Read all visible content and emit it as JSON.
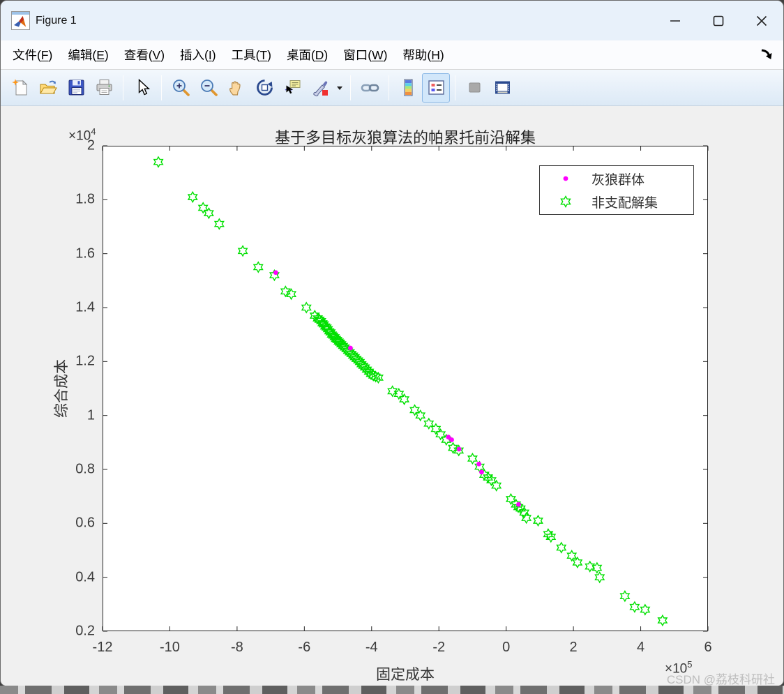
{
  "window": {
    "title": "Figure 1",
    "controls": [
      {
        "name": "minimize-button"
      },
      {
        "name": "maximize-button"
      },
      {
        "name": "close-button"
      }
    ]
  },
  "menu": {
    "items": [
      {
        "id": "file",
        "text": "文件",
        "key": "F"
      },
      {
        "id": "edit",
        "text": "编辑",
        "key": "E"
      },
      {
        "id": "view",
        "text": "查看",
        "key": "V"
      },
      {
        "id": "insert",
        "text": "插入",
        "key": "I"
      },
      {
        "id": "tools",
        "text": "工具",
        "key": "T"
      },
      {
        "id": "desktop",
        "text": "桌面",
        "key": "D"
      },
      {
        "id": "window",
        "text": "窗口",
        "key": "W"
      },
      {
        "id": "help",
        "text": "帮助",
        "key": "H"
      }
    ],
    "dock_icon": "dock-arrow-icon"
  },
  "toolbar": {
    "groups": [
      [
        "new-figure",
        "open-file",
        "save-figure",
        "print-figure"
      ],
      [
        "edit-plot"
      ],
      [
        "zoom-in",
        "zoom-out",
        "pan",
        "rotate-3d",
        "data-cursor",
        "brush",
        "brush-menu-caret"
      ],
      [
        "link-plot"
      ],
      [
        "insert-colorbar",
        "insert-legend"
      ],
      [
        "hide-plot-tools",
        "dock-figure"
      ]
    ],
    "active": "insert-legend",
    "disabled": [
      "hide-plot-tools"
    ]
  },
  "chart_data": {
    "type": "scatter",
    "title": "基于多目标灰狼算法的帕累托前沿解集",
    "xlabel": "固定成本",
    "ylabel": "综合成本",
    "xlim": [
      -12,
      6
    ],
    "ylim": [
      0.2,
      2
    ],
    "x_exponent": {
      "base": "×10",
      "exp": "5"
    },
    "y_exponent": {
      "base": "×10",
      "exp": "4"
    },
    "xticks": [
      "-12",
      "-10",
      "-8",
      "-6",
      "-4",
      "-2",
      "0",
      "2",
      "4",
      "6"
    ],
    "yticks": [
      "0.2",
      "0.4",
      "0.6",
      "0.8",
      "1",
      "1.2",
      "1.4",
      "1.6",
      "1.8",
      "2"
    ],
    "grid": false,
    "legend_position": "top-right",
    "series": [
      {
        "name": "灰狼群体",
        "marker": "dot",
        "color": "#ff00ff",
        "points": [
          [
            -6.85,
            1.53
          ],
          [
            -4.63,
            1.25
          ],
          [
            -1.72,
            0.92
          ],
          [
            -1.62,
            0.91
          ],
          [
            -1.4,
            0.875
          ],
          [
            -0.81,
            0.82
          ],
          [
            -0.73,
            0.79
          ],
          [
            0.37,
            0.67
          ]
        ]
      },
      {
        "name": "非支配解集",
        "marker": "hexagram",
        "color": "#00e000",
        "points": [
          [
            -10.34,
            1.94
          ],
          [
            -9.32,
            1.81
          ],
          [
            -9.01,
            1.77
          ],
          [
            -8.84,
            1.75
          ],
          [
            -8.53,
            1.71
          ],
          [
            -7.83,
            1.61
          ],
          [
            -7.37,
            1.55
          ],
          [
            -6.89,
            1.52
          ],
          [
            -6.56,
            1.46
          ],
          [
            -6.39,
            1.45
          ],
          [
            -5.94,
            1.4
          ],
          [
            -5.69,
            1.37
          ],
          [
            -5.6,
            1.36
          ],
          [
            -5.55,
            1.355
          ],
          [
            -5.5,
            1.35
          ],
          [
            -5.46,
            1.342
          ],
          [
            -5.42,
            1.338
          ],
          [
            -5.38,
            1.33
          ],
          [
            -5.34,
            1.326
          ],
          [
            -5.3,
            1.32
          ],
          [
            -5.26,
            1.312
          ],
          [
            -5.22,
            1.308
          ],
          [
            -5.18,
            1.3
          ],
          [
            -5.14,
            1.296
          ],
          [
            -5.1,
            1.29
          ],
          [
            -5.06,
            1.284
          ],
          [
            -5.02,
            1.28
          ],
          [
            -4.98,
            1.274
          ],
          [
            -4.94,
            1.27
          ],
          [
            -4.9,
            1.264
          ],
          [
            -4.85,
            1.258
          ],
          [
            -4.8,
            1.252
          ],
          [
            -4.75,
            1.246
          ],
          [
            -4.7,
            1.24
          ],
          [
            -4.65,
            1.234
          ],
          [
            -4.6,
            1.228
          ],
          [
            -4.55,
            1.222
          ],
          [
            -4.5,
            1.216
          ],
          [
            -4.45,
            1.21
          ],
          [
            -4.4,
            1.204
          ],
          [
            -4.35,
            1.198
          ],
          [
            -4.3,
            1.19
          ],
          [
            -4.25,
            1.184
          ],
          [
            -4.2,
            1.178
          ],
          [
            -4.14,
            1.17
          ],
          [
            -4.08,
            1.162
          ],
          [
            -4.02,
            1.154
          ],
          [
            -3.95,
            1.148
          ],
          [
            -3.88,
            1.144
          ],
          [
            -3.8,
            1.14
          ],
          [
            -3.38,
            1.09
          ],
          [
            -3.19,
            1.08
          ],
          [
            -3.03,
            1.06
          ],
          [
            -2.72,
            1.02
          ],
          [
            -2.55,
            1.0
          ],
          [
            -2.3,
            0.97
          ],
          [
            -2.09,
            0.95
          ],
          [
            -1.95,
            0.93
          ],
          [
            -1.78,
            0.91
          ],
          [
            -1.58,
            0.88
          ],
          [
            -1.41,
            0.87
          ],
          [
            -1.0,
            0.84
          ],
          [
            -0.79,
            0.81
          ],
          [
            -0.65,
            0.78
          ],
          [
            -0.54,
            0.77
          ],
          [
            -0.44,
            0.76
          ],
          [
            -0.29,
            0.74
          ],
          [
            0.14,
            0.69
          ],
          [
            0.29,
            0.67
          ],
          [
            0.36,
            0.66
          ],
          [
            0.43,
            0.655
          ],
          [
            0.54,
            0.64
          ],
          [
            0.6,
            0.62
          ],
          [
            0.95,
            0.61
          ],
          [
            1.25,
            0.56
          ],
          [
            1.33,
            0.55
          ],
          [
            1.64,
            0.51
          ],
          [
            1.95,
            0.48
          ],
          [
            2.12,
            0.455
          ],
          [
            2.49,
            0.44
          ],
          [
            2.7,
            0.435
          ],
          [
            2.78,
            0.4
          ],
          [
            3.53,
            0.33
          ],
          [
            3.82,
            0.29
          ],
          [
            4.13,
            0.28
          ],
          [
            4.65,
            0.24
          ]
        ]
      }
    ]
  },
  "watermark": "CSDN @荔枝科研社"
}
